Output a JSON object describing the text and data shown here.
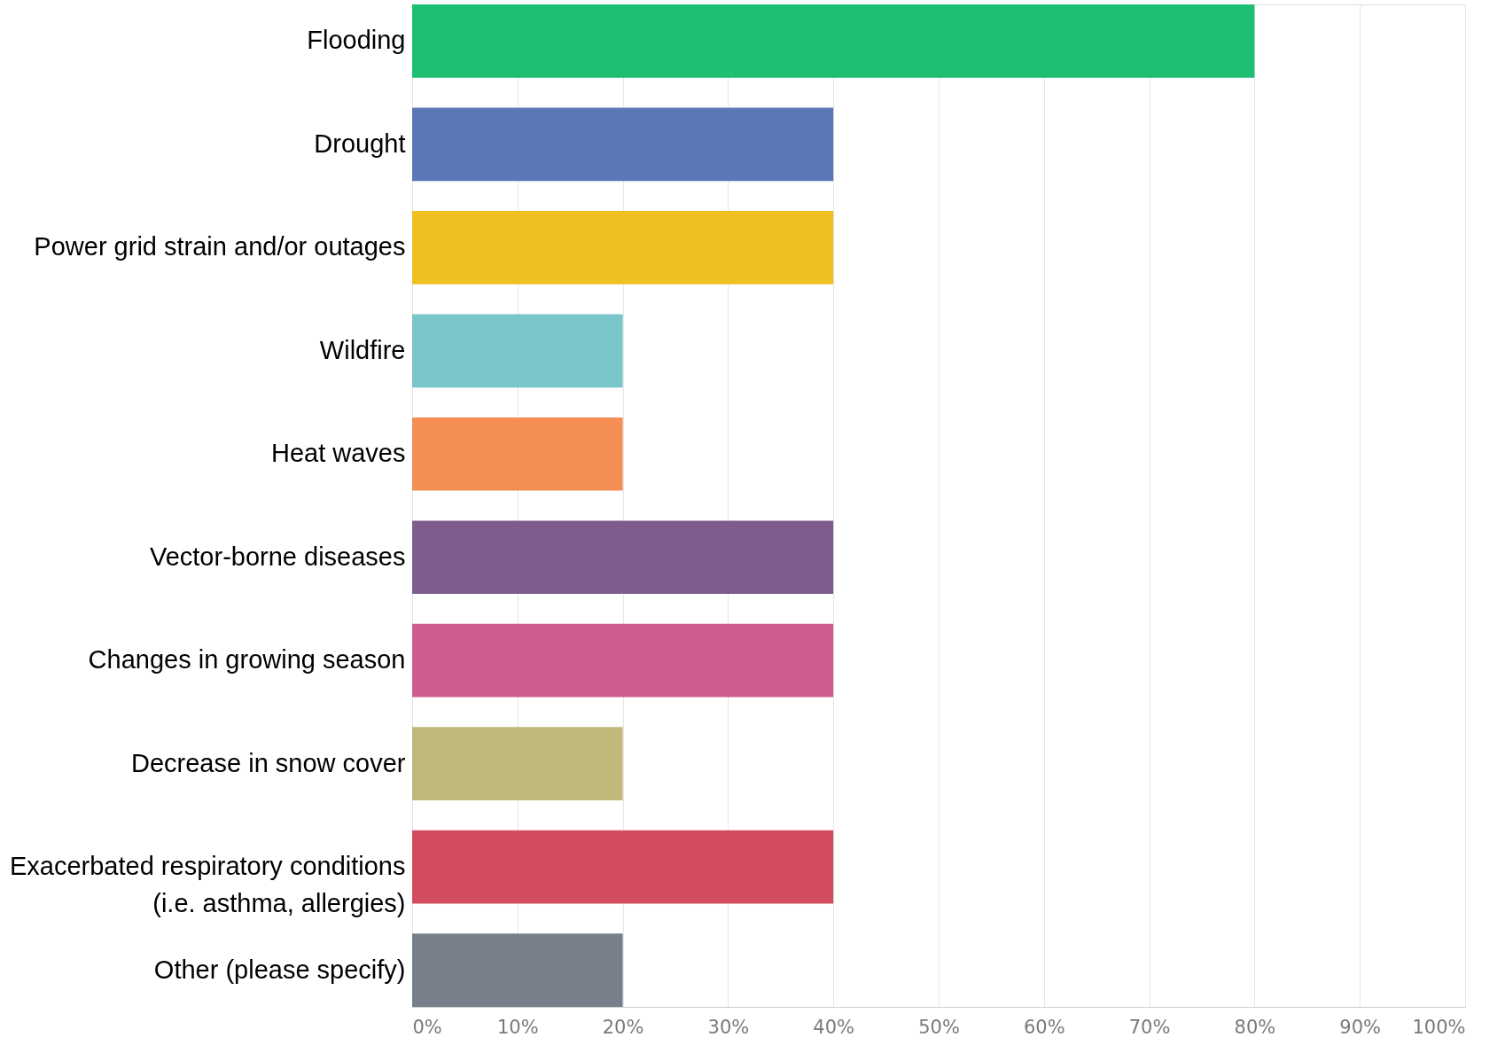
{
  "chart_data": {
    "type": "bar",
    "orientation": "horizontal",
    "categories": [
      "Flooding",
      "Drought",
      "Power grid strain and/or outages",
      "Wildfire",
      "Heat waves",
      "Vector-borne diseases",
      "Changes in growing season",
      "Decrease in snow cover",
      "Exacerbated respiratory conditions\n(i.e. asthma, allergies)",
      "Other (please specify)"
    ],
    "values": [
      80,
      40,
      40,
      20,
      20,
      40,
      40,
      20,
      40,
      20
    ],
    "colors": [
      "#1dbf73",
      "#5b77b5",
      "#f0c020",
      "#78c5ca",
      "#f48e55",
      "#7e5c8e",
      "#cf5c8f",
      "#c0b97b",
      "#d24b5f",
      "#77808a"
    ],
    "xlim": [
      0,
      100
    ],
    "xticks": [
      {
        "value": 0,
        "label": "0%"
      },
      {
        "value": 10,
        "label": "10%"
      },
      {
        "value": 20,
        "label": "20%"
      },
      {
        "value": 30,
        "label": "30%"
      },
      {
        "value": 40,
        "label": "40%"
      },
      {
        "value": 50,
        "label": "50%"
      },
      {
        "value": 60,
        "label": "60%"
      },
      {
        "value": 70,
        "label": "70%"
      },
      {
        "value": 80,
        "label": "80%"
      },
      {
        "value": 90,
        "label": "90%"
      },
      {
        "value": 100,
        "label": "100%"
      }
    ],
    "grid": "x"
  }
}
